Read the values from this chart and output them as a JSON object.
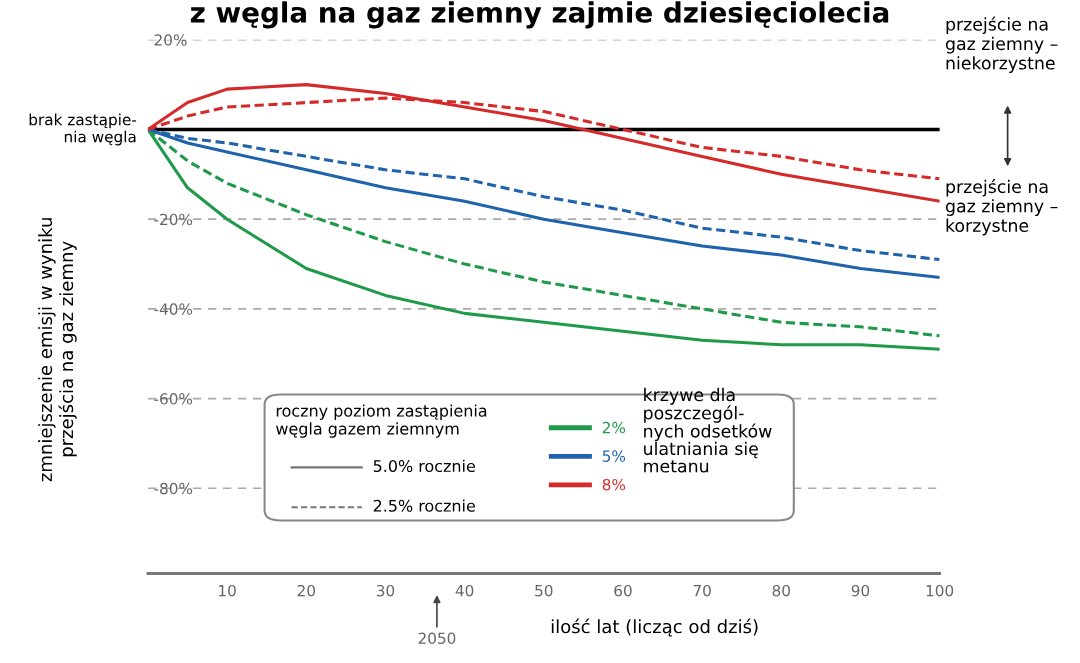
{
  "chart_data": {
    "type": "line",
    "title": "z węgla na gaz ziemny zajmie dziesięciolecia",
    "xlabel": "ilość lat (licząc od dziś)",
    "ylabel": "zmniejszenie emisji w wyniku\nprzejścia na gaz ziemny",
    "x": [
      0,
      5,
      10,
      20,
      30,
      40,
      50,
      60,
      70,
      80,
      90,
      100
    ],
    "series": [
      {
        "name": "2%",
        "color": "#1e9a4a",
        "line_style": "solid",
        "values": [
          0,
          -13,
          -20,
          -31,
          -37,
          -41,
          -43,
          -45,
          -47,
          -48,
          -48,
          -49
        ]
      },
      {
        "name": "5%",
        "color": "#1f63ad",
        "line_style": "solid",
        "values": [
          0,
          -3,
          -5,
          -9,
          -13,
          -16,
          -20,
          -23,
          -26,
          -28,
          -31,
          -33
        ]
      },
      {
        "name": "8%",
        "color": "#d42a2a",
        "line_style": "solid",
        "values": [
          0,
          6,
          9,
          10,
          8,
          5,
          2,
          -2,
          -6,
          -10,
          -13,
          -16
        ]
      },
      {
        "color": "#1e9a4a",
        "line_style": "dashed",
        "values": [
          0,
          -7,
          -12,
          -19,
          -25,
          -30,
          -34,
          -37,
          -40,
          -43,
          -44,
          -46
        ]
      },
      {
        "color": "#1f63ad",
        "line_style": "dashed",
        "values": [
          0,
          -2,
          -3,
          -6,
          -9,
          -11,
          -15,
          -18,
          -22,
          -24,
          -27,
          -29
        ]
      },
      {
        "color": "#d42a2a",
        "line_style": "dashed",
        "values": [
          0,
          3,
          5,
          6,
          7,
          6,
          4,
          0,
          -4,
          -6,
          -9,
          -11
        ]
      }
    ],
    "xlim": [
      0,
      100
    ],
    "xticks": [
      10,
      20,
      30,
      40,
      50,
      60,
      70,
      80,
      90,
      100
    ],
    "ylim": [
      -99,
      20
    ],
    "yticks": [
      {
        "value": 20,
        "label": "20%"
      },
      {
        "value": -20,
        "label": "-20%"
      },
      {
        "value": -40,
        "label": "-40%"
      },
      {
        "value": -60,
        "label": "-60%"
      },
      {
        "value": -80,
        "label": "-80%"
      }
    ],
    "grid": "y",
    "legend": "bottom",
    "ref_lines": [
      {
        "axis": "y",
        "value": 0,
        "label": "brak zastąpie-\nnia węgla",
        "color": "#000000"
      }
    ],
    "annotations": [
      "2050",
      "przejście na\ngaz ziemny –\nniekorzystne",
      "przejście na\ngaz ziemny –\nkorzystne",
      "roczny poziom zastąpienia\nwęgla gazem ziemnym",
      "5.0% rocznie",
      "2.5% rocznie",
      "krzywe dla\nposzczegól-\nnych odsetków\nulatniania się\nmetanu"
    ]
  }
}
